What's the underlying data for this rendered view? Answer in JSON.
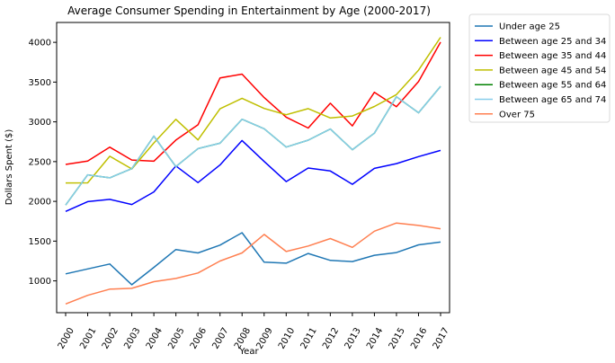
{
  "chart_data": {
    "type": "line",
    "title": "Average Consumer Spending in Entertainment by Age (2000-2017)",
    "xlabel": "Year",
    "ylabel": "Dollars Spent ($)",
    "x": [
      "2000",
      "2001",
      "2002",
      "2003",
      "2004",
      "2005",
      "2006",
      "2007",
      "2008",
      "2009",
      "2010",
      "2011",
      "2012",
      "2013",
      "2014",
      "2015",
      "2016",
      "2017"
    ],
    "ylim": [
      600,
      4250
    ],
    "yticks": [
      1000,
      1500,
      2000,
      2500,
      3000,
      3500,
      4000
    ],
    "grid": false,
    "legend_position": "outside-top-right",
    "series": [
      {
        "name": "Under age 25",
        "color": "#1f77b4",
        "values": [
          1088,
          1150,
          1212,
          952,
          1170,
          1394,
          1351,
          1450,
          1606,
          1235,
          1223,
          1345,
          1258,
          1243,
          1322,
          1356,
          1453,
          1488
        ]
      },
      {
        "name": "Between age 25 and 34",
        "color": "#0000ff",
        "values": [
          1874,
          1997,
          2025,
          1960,
          2119,
          2445,
          2236,
          2458,
          2765,
          2502,
          2249,
          2419,
          2382,
          2215,
          2415,
          2475,
          2563,
          2641
        ]
      },
      {
        "name": "Between age 35 and 44",
        "color": "#ff0000",
        "values": [
          2464,
          2506,
          2681,
          2520,
          2505,
          2771,
          2963,
          3553,
          3600,
          3305,
          3059,
          2922,
          3234,
          2949,
          3372,
          3190,
          3506,
          4002
        ]
      },
      {
        "name": "Between age 45 and 54",
        "color": "#bfbf00",
        "values": [
          2232,
          2233,
          2567,
          2408,
          2735,
          3032,
          2773,
          3164,
          3296,
          3168,
          3090,
          3166,
          3049,
          3074,
          3193,
          3343,
          3650,
          4063
        ]
      },
      {
        "name": "Between age 55 and 64",
        "color": "#008000",
        "values": [
          1954,
          2334,
          2296,
          2411,
          2820,
          2437,
          2664,
          2731,
          3033,
          2913,
          2683,
          2770,
          2910,
          2650,
          2858,
          3316,
          3114,
          3447
        ]
      },
      {
        "name": "Between age 65 and 74",
        "color": "#87ceeb",
        "values": [
          1954,
          2334,
          2296,
          2411,
          2820,
          2437,
          2664,
          2731,
          3033,
          2913,
          2683,
          2770,
          2910,
          2650,
          2858,
          3316,
          3114,
          3447
        ]
      },
      {
        "name": "Over 75",
        "color": "#ff7f50",
        "values": [
          710,
          818,
          896,
          906,
          990,
          1030,
          1100,
          1250,
          1352,
          1584,
          1370,
          1438,
          1532,
          1421,
          1625,
          1728,
          1697,
          1656
        ]
      }
    ]
  }
}
